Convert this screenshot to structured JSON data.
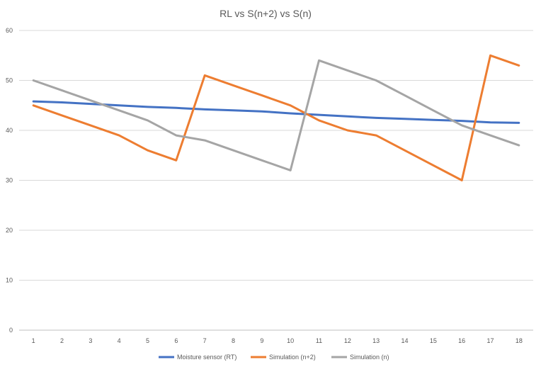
{
  "chart_data": {
    "type": "line",
    "title": "RL vs S(n+2) vs S(n)",
    "xlabel": "",
    "ylabel": "",
    "categories": [
      "1",
      "2",
      "3",
      "4",
      "5",
      "6",
      "7",
      "8",
      "9",
      "10",
      "11",
      "12",
      "13",
      "14",
      "15",
      "16",
      "17",
      "18"
    ],
    "ylim": [
      0,
      60
    ],
    "yticks": [
      0,
      10,
      20,
      30,
      40,
      50,
      60
    ],
    "grid": true,
    "legend_position": "bottom",
    "series": [
      {
        "name": "Moisture sensor (RT)",
        "color": "#4472C4",
        "values": [
          45.8,
          45.6,
          45.3,
          45.0,
          44.7,
          44.5,
          44.2,
          44.0,
          43.8,
          43.4,
          43.1,
          42.8,
          42.5,
          42.3,
          42.1,
          41.9,
          41.6,
          41.5
        ]
      },
      {
        "name": "Simulation (n+2)",
        "color": "#ED7D31",
        "values": [
          45,
          43,
          41,
          39,
          36,
          34,
          51,
          49,
          47,
          45,
          42,
          40,
          39,
          36,
          33,
          30,
          55,
          53
        ]
      },
      {
        "name": "Simulation (n)",
        "color": "#A5A5A5",
        "values": [
          50,
          48,
          46,
          44,
          42,
          39,
          38,
          36,
          34,
          32,
          54,
          52,
          50,
          47,
          44,
          41,
          39,
          37
        ]
      }
    ]
  }
}
